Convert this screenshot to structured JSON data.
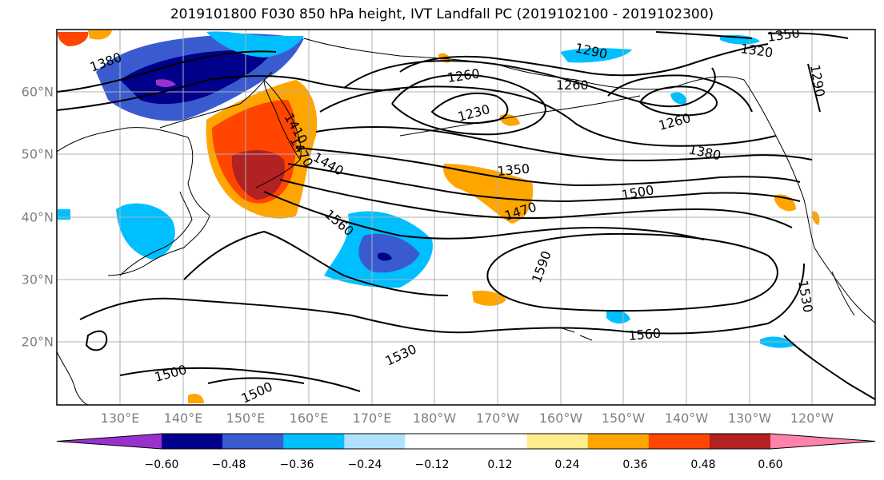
{
  "title": "2019101800 F030 850 hPa height, IVT Landfall PC (2019102100 - 2019102300)",
  "lat_labels": [
    "60°N",
    "50°N",
    "40°N",
    "30°N",
    "20°N"
  ],
  "lon_labels": [
    "130°E",
    "140°E",
    "150°E",
    "160°E",
    "170°E",
    "180°W",
    "170°W",
    "160°W",
    "150°W",
    "140°W",
    "130°W",
    "120°W"
  ],
  "colorbar": {
    "colors": [
      "#9932cc",
      "#00008b",
      "#3a5bd0",
      "#00bfff",
      "#b0e2ff",
      "#ffffff",
      "#ffffff",
      "#ffec8b",
      "#ffa500",
      "#ff4500",
      "#b22222",
      "#ff82ab"
    ],
    "ticks": [
      "−0.60",
      "−0.48",
      "−0.36",
      "−0.24",
      "−0.12",
      "0.12",
      "0.24",
      "0.36",
      "0.48",
      "0.60"
    ]
  },
  "contour_labels": [
    "1380",
    "1260",
    "1230",
    "1260",
    "1290",
    "1320",
    "1350",
    "1290",
    "1260",
    "1380",
    "1350",
    "1470",
    "1500",
    "1410",
    "1440",
    "1470",
    "1560",
    "1590",
    "1530",
    "1560",
    "1530",
    "1500",
    "1500"
  ],
  "colors": {
    "grid": "#b0b0b0",
    "contour": "#000000",
    "tick_text": "#808080"
  }
}
